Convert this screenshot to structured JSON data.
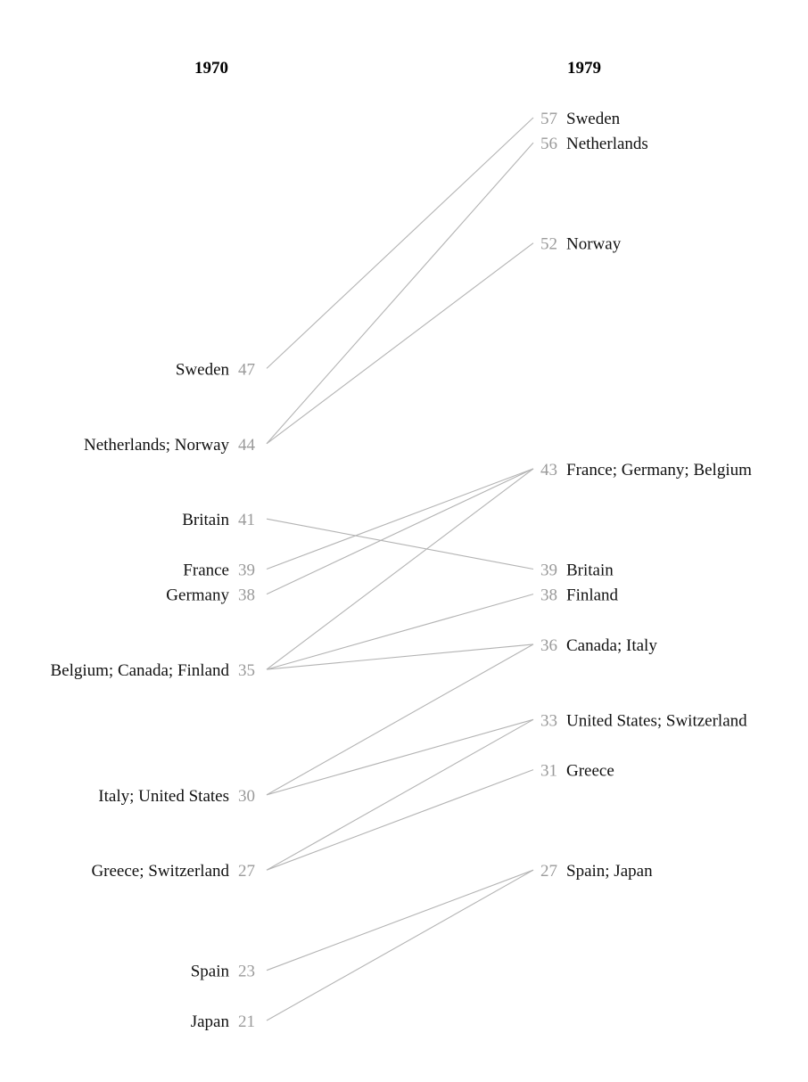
{
  "chart_data": {
    "type": "slope",
    "columns": [
      "1970",
      "1979"
    ],
    "left_labels": [
      {
        "text": "Sweden",
        "value": 47
      },
      {
        "text": "Netherlands; Norway",
        "value": 44
      },
      {
        "text": "Britain",
        "value": 41
      },
      {
        "text": "France",
        "value": 39
      },
      {
        "text": "Germany",
        "value": 38
      },
      {
        "text": "Belgium; Canada; Finland",
        "value": 35
      },
      {
        "text": "Italy; United States",
        "value": 30
      },
      {
        "text": "Greece; Switzerland",
        "value": 27
      },
      {
        "text": "Spain",
        "value": 23
      },
      {
        "text": "Japan",
        "value": 21
      }
    ],
    "right_labels": [
      {
        "text": "Sweden",
        "value": 57
      },
      {
        "text": "Netherlands",
        "value": 56
      },
      {
        "text": "Norway",
        "value": 52
      },
      {
        "text": "France; Germany; Belgium",
        "value": 43
      },
      {
        "text": "Britain",
        "value": 39
      },
      {
        "text": "Finland",
        "value": 38
      },
      {
        "text": "Canada; Italy",
        "value": 36
      },
      {
        "text": "United States; Switzerland",
        "value": 33
      },
      {
        "text": "Greece",
        "value": 31
      },
      {
        "text": "Spain; Japan",
        "value": 27
      }
    ],
    "series": [
      {
        "name": "Sweden",
        "values": [
          47,
          57
        ]
      },
      {
        "name": "Netherlands",
        "values": [
          44,
          56
        ]
      },
      {
        "name": "Norway",
        "values": [
          44,
          52
        ]
      },
      {
        "name": "Britain",
        "values": [
          41,
          39
        ]
      },
      {
        "name": "France",
        "values": [
          39,
          43
        ]
      },
      {
        "name": "Germany",
        "values": [
          38,
          43
        ]
      },
      {
        "name": "Belgium",
        "values": [
          35,
          43
        ]
      },
      {
        "name": "Canada",
        "values": [
          35,
          36
        ]
      },
      {
        "name": "Finland",
        "values": [
          35,
          38
        ]
      },
      {
        "name": "Italy",
        "values": [
          30,
          36
        ]
      },
      {
        "name": "United States",
        "values": [
          30,
          33
        ]
      },
      {
        "name": "Greece",
        "values": [
          27,
          31
        ]
      },
      {
        "name": "Switzerland",
        "values": [
          27,
          33
        ]
      },
      {
        "name": "Spain",
        "values": [
          23,
          27
        ]
      },
      {
        "name": "Japan",
        "values": [
          21,
          27
        ]
      }
    ],
    "ylim": [
      21,
      57
    ],
    "grid": false,
    "colors": {
      "line": "#b3b3b3",
      "value_text": "#9a9a9a",
      "label_text": "#111111"
    }
  }
}
